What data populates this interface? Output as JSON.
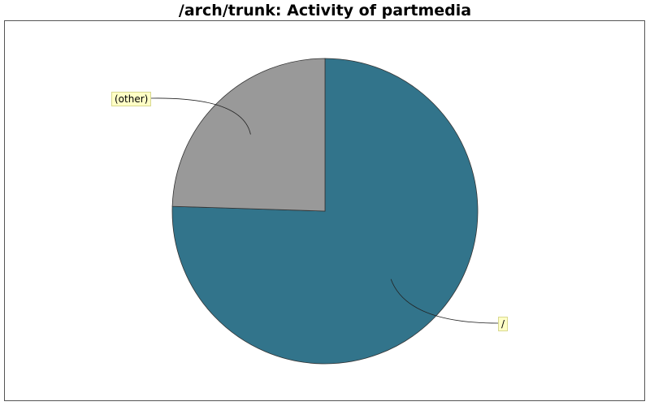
{
  "chart_data": {
    "type": "pie",
    "title": "/arch/trunk: Activity of partmedia",
    "slices": [
      {
        "label": "/",
        "value": 75.5,
        "color": "#32748b"
      },
      {
        "label": "(other)",
        "value": 24.5,
        "color": "#999999"
      }
    ],
    "start_angle_deg": 0,
    "direction": "clockwise",
    "legend": "none"
  }
}
